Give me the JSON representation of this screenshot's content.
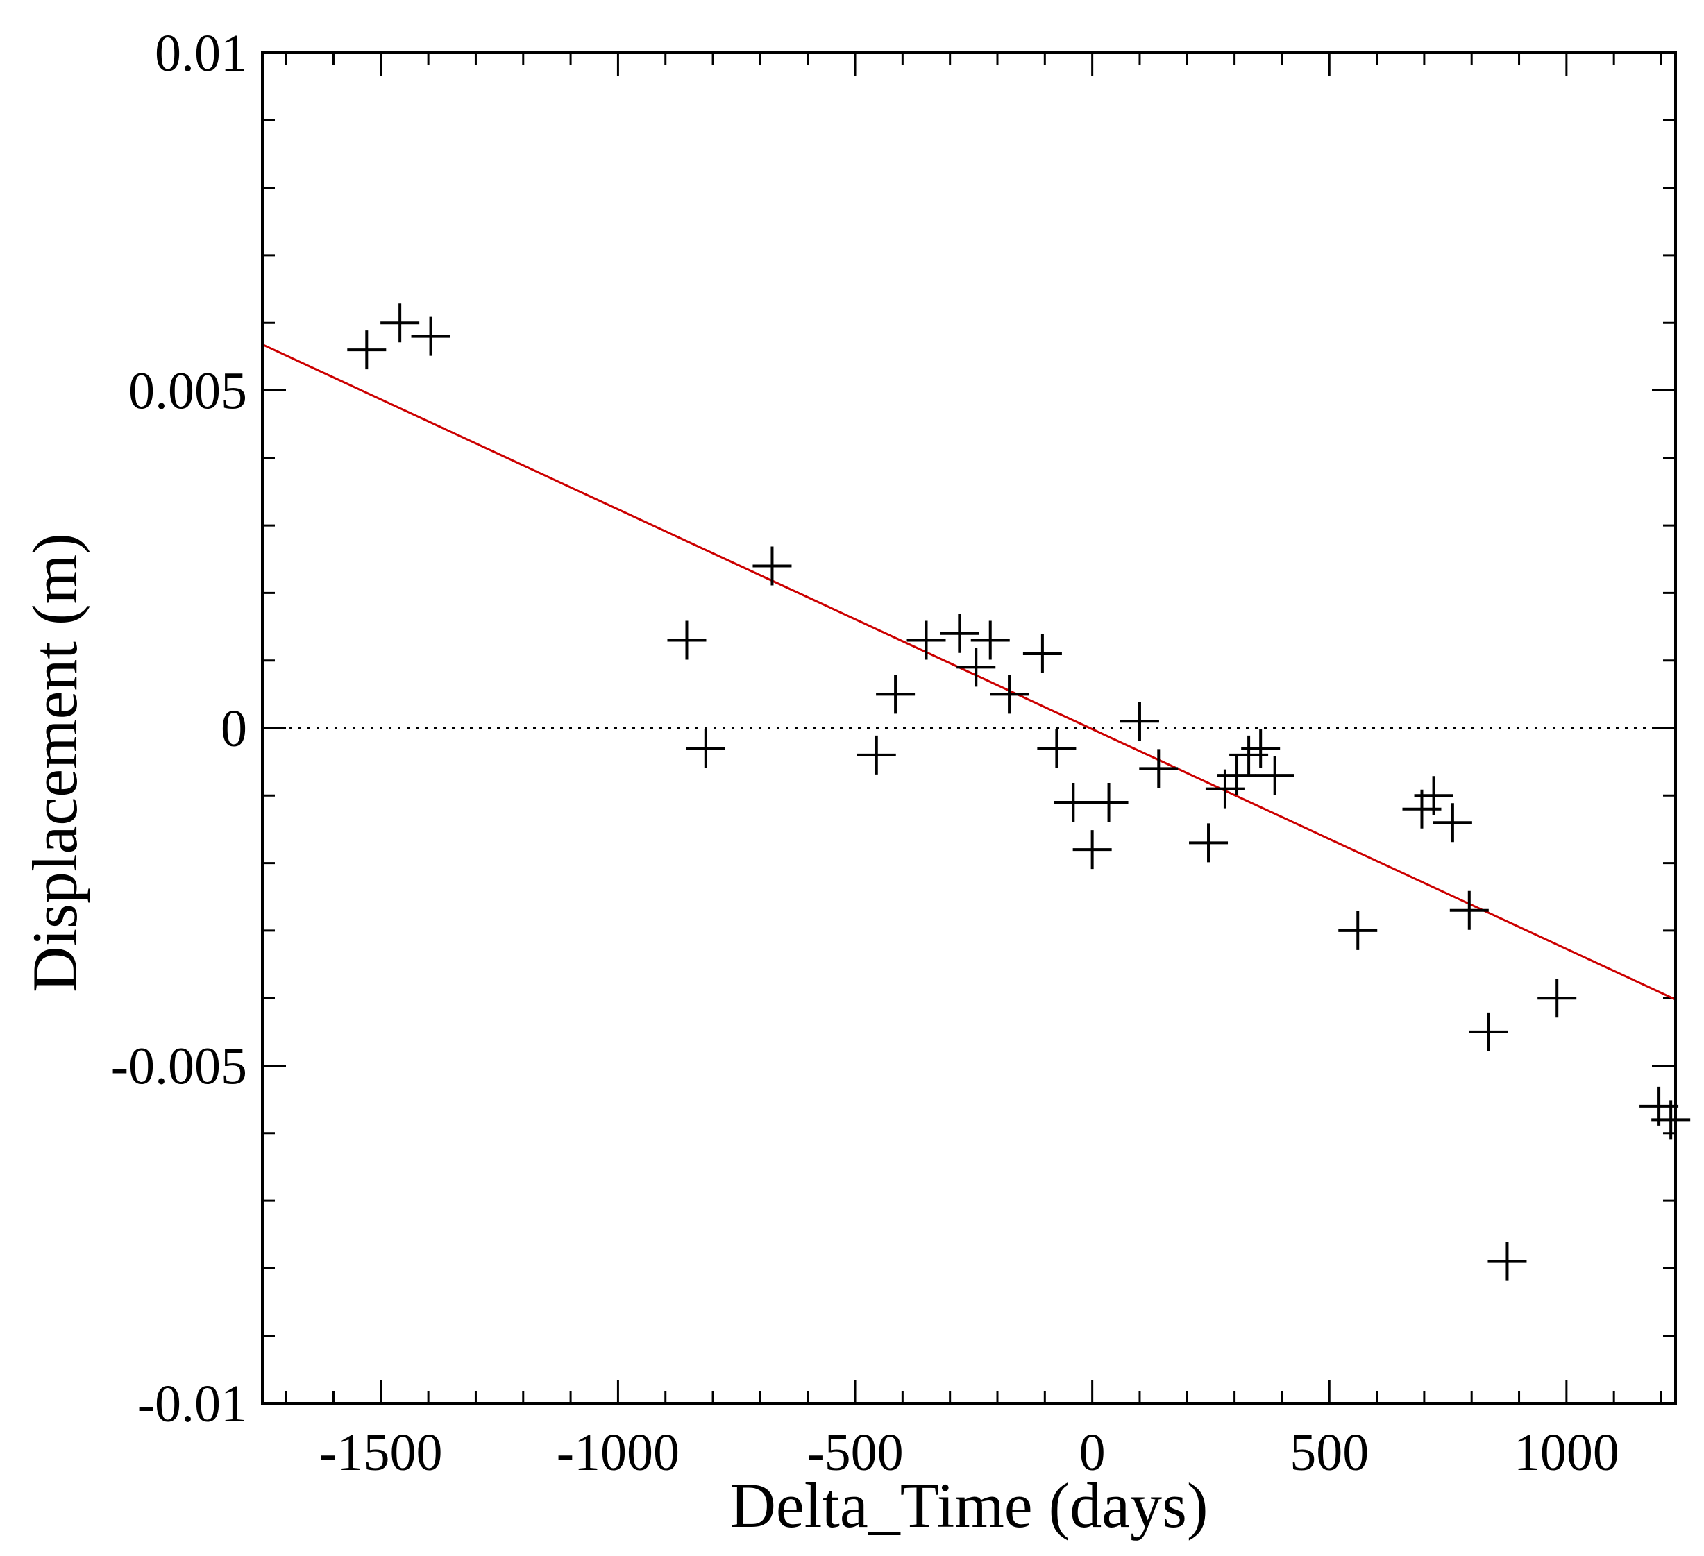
{
  "chart_data": {
    "type": "scatter",
    "xlabel": "Delta_Time (days)",
    "ylabel": "Displacement (m)",
    "xlim": [
      -1750,
      1230
    ],
    "ylim": [
      -0.01,
      0.01
    ],
    "x_ticks": [
      -1500,
      -1000,
      -500,
      0,
      500,
      1000
    ],
    "x_tick_labels": [
      "-1500",
      "-1000",
      "-500",
      "0",
      "500",
      "1000"
    ],
    "y_ticks": [
      -0.01,
      -0.005,
      0,
      0.005,
      0.01
    ],
    "y_tick_labels": [
      "-0.01",
      "-0.005",
      "0",
      "0.005",
      "0.01"
    ],
    "x_minor_step": 100,
    "y_minor_step": 0.001,
    "grid": false,
    "reference_line": {
      "y": 0,
      "style": "dotted",
      "color": "#000000"
    },
    "fit_line": {
      "x": [
        -1750,
        1230
      ],
      "y": [
        0.00568,
        -0.00402
      ],
      "color": "#cc0000"
    },
    "marker": "plus",
    "marker_color": "#000000",
    "points": [
      {
        "x": -1530,
        "y": 0.0056
      },
      {
        "x": -1460,
        "y": 0.006
      },
      {
        "x": -1395,
        "y": 0.0058
      },
      {
        "x": -855,
        "y": 0.0013
      },
      {
        "x": -815,
        "y": -0.0003
      },
      {
        "x": -675,
        "y": 0.0024
      },
      {
        "x": -455,
        "y": -0.0004
      },
      {
        "x": -415,
        "y": 0.0005
      },
      {
        "x": -350,
        "y": 0.0013
      },
      {
        "x": -280,
        "y": 0.0014
      },
      {
        "x": -245,
        "y": 0.0009
      },
      {
        "x": -215,
        "y": 0.0013
      },
      {
        "x": -175,
        "y": 0.0005
      },
      {
        "x": -105,
        "y": 0.0011
      },
      {
        "x": -75,
        "y": -0.0003
      },
      {
        "x": -40,
        "y": -0.0011
      },
      {
        "x": 0,
        "y": -0.0018
      },
      {
        "x": 35,
        "y": -0.0011
      },
      {
        "x": 100,
        "y": 0.0001
      },
      {
        "x": 140,
        "y": -0.0006
      },
      {
        "x": 245,
        "y": -0.0017
      },
      {
        "x": 280,
        "y": -0.0009
      },
      {
        "x": 305,
        "y": -0.0007
      },
      {
        "x": 330,
        "y": -0.0004
      },
      {
        "x": 355,
        "y": -0.0003
      },
      {
        "x": 385,
        "y": -0.0007
      },
      {
        "x": 560,
        "y": -0.003
      },
      {
        "x": 695,
        "y": -0.0012
      },
      {
        "x": 720,
        "y": -0.001
      },
      {
        "x": 760,
        "y": -0.0014
      },
      {
        "x": 795,
        "y": -0.0027
      },
      {
        "x": 835,
        "y": -0.0045
      },
      {
        "x": 875,
        "y": -0.0079
      },
      {
        "x": 980,
        "y": -0.004
      },
      {
        "x": 1195,
        "y": -0.0056
      },
      {
        "x": 1220,
        "y": -0.0058
      }
    ]
  }
}
